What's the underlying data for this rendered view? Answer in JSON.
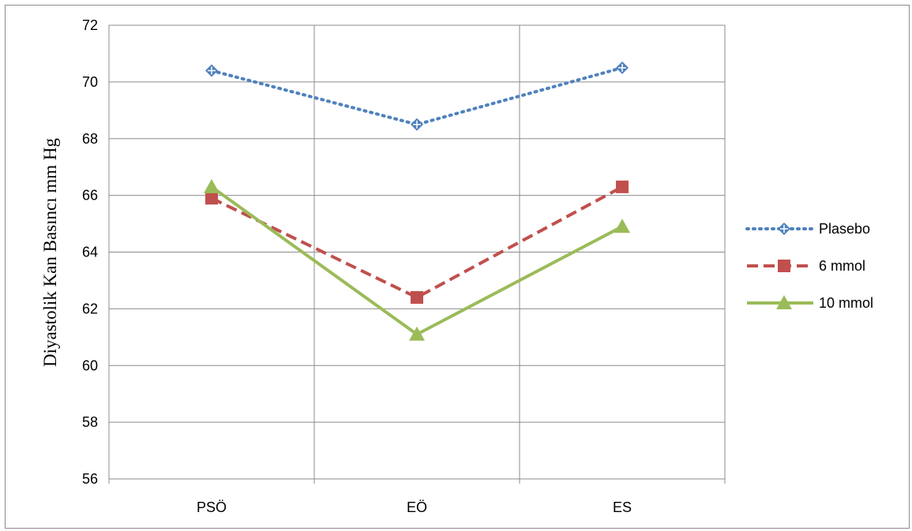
{
  "chart_data": {
    "type": "line",
    "title": "",
    "xlabel": "",
    "ylabel": "Diyastolik Kan Basıncı mm Hg",
    "categories": [
      "PSÖ",
      "EÖ",
      "ES"
    ],
    "ylim": [
      56,
      72
    ],
    "yticks": [
      56,
      58,
      60,
      62,
      64,
      66,
      68,
      70,
      72
    ],
    "grid": true,
    "legend_position": "right",
    "series": [
      {
        "name": "Plasebo",
        "values": [
          70.4,
          68.5,
          70.5
        ],
        "color": "#4f81bd",
        "line_style": "dotted",
        "marker": "diamond-cross"
      },
      {
        "name": "6 mmol",
        "values": [
          65.9,
          62.4,
          66.3
        ],
        "color": "#c0504d",
        "line_style": "dashed",
        "marker": "square"
      },
      {
        "name": "10 mmol",
        "values": [
          66.3,
          61.1,
          64.9
        ],
        "color": "#9bbb59",
        "line_style": "solid",
        "marker": "triangle"
      }
    ]
  }
}
